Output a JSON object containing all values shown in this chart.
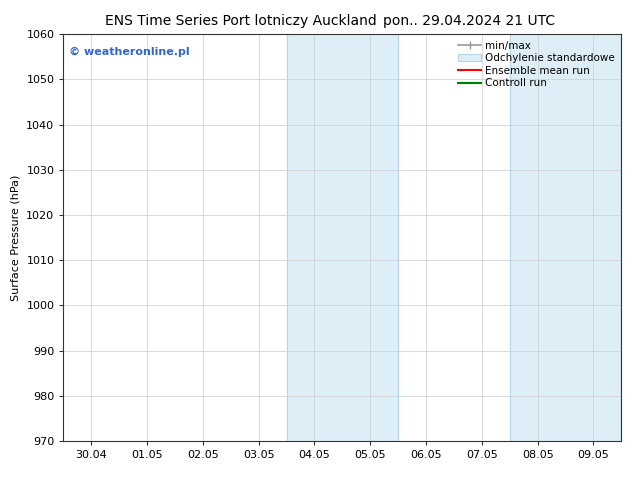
{
  "title_left": "ENS Time Series Port lotniczy Auckland",
  "title_right": "pon.. 29.04.2024 21 UTC",
  "ylabel": "Surface Pressure (hPa)",
  "ylim": [
    970,
    1060
  ],
  "yticks": [
    970,
    980,
    990,
    1000,
    1010,
    1020,
    1030,
    1040,
    1050,
    1060
  ],
  "xtick_labels": [
    "30.04",
    "01.05",
    "02.05",
    "03.05",
    "04.05",
    "05.05",
    "06.05",
    "07.05",
    "08.05",
    "09.05"
  ],
  "shaded_regions": [
    {
      "xstart": 4.0,
      "xend": 6.0
    },
    {
      "xstart": 8.0,
      "xend": 10.0
    }
  ],
  "shade_color": "#ddeef7",
  "shade_edge_color": "#b8d4e8",
  "watermark_text": "© weatheronline.pl",
  "watermark_color": "#3366cc",
  "legend_items": [
    {
      "label": "min/max"
    },
    {
      "label": "Odchylenie standardowe"
    },
    {
      "label": "Ensemble mean run"
    },
    {
      "label": "Controll run"
    }
  ],
  "background_color": "#ffffff",
  "grid_color": "#cccccc",
  "title_fontsize": 10,
  "axis_fontsize": 8,
  "tick_fontsize": 8,
  "legend_fontsize": 7.5
}
